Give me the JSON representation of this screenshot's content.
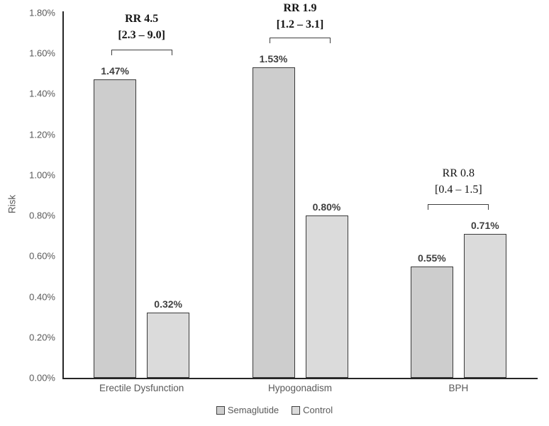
{
  "chart_data": {
    "type": "bar",
    "title": "",
    "xlabel": "",
    "ylabel": "Risk",
    "categories": [
      "Erectile Dysfunction",
      "Hypogonadism",
      "BPH"
    ],
    "series": [
      {
        "name": "Semaglutide",
        "values": [
          1.47,
          1.53,
          0.55
        ],
        "labels": [
          "1.47%",
          "1.53%",
          "0.55%"
        ],
        "color": "#cdcdcd"
      },
      {
        "name": "Control",
        "values": [
          0.32,
          0.8,
          0.71
        ],
        "labels": [
          "0.32%",
          "0.80%",
          "0.71%"
        ],
        "color": "#dbdbdb"
      }
    ],
    "annotations": [
      {
        "rr": "RR 4.5",
        "ci": "[2.3 – 9.0]",
        "bold": true
      },
      {
        "rr": "RR 1.9",
        "ci": "[1.2 – 3.1]",
        "bold": true
      },
      {
        "rr": "RR 0.8",
        "ci": "[0.4 – 1.5]",
        "bold": false
      }
    ],
    "ylim": [
      0,
      1.8
    ],
    "ytick_step": 0.2,
    "ytick_format": "0.00%",
    "grid": false,
    "legend_position": "bottom",
    "colors": {
      "bar_border": "#3a3a3a",
      "axis_line": "#262626",
      "tick_text": "#595959",
      "value_text": "#3f3f3f",
      "annotation_text": "#141414",
      "bracket": "#3f3f3f",
      "background": "#ffffff"
    }
  }
}
